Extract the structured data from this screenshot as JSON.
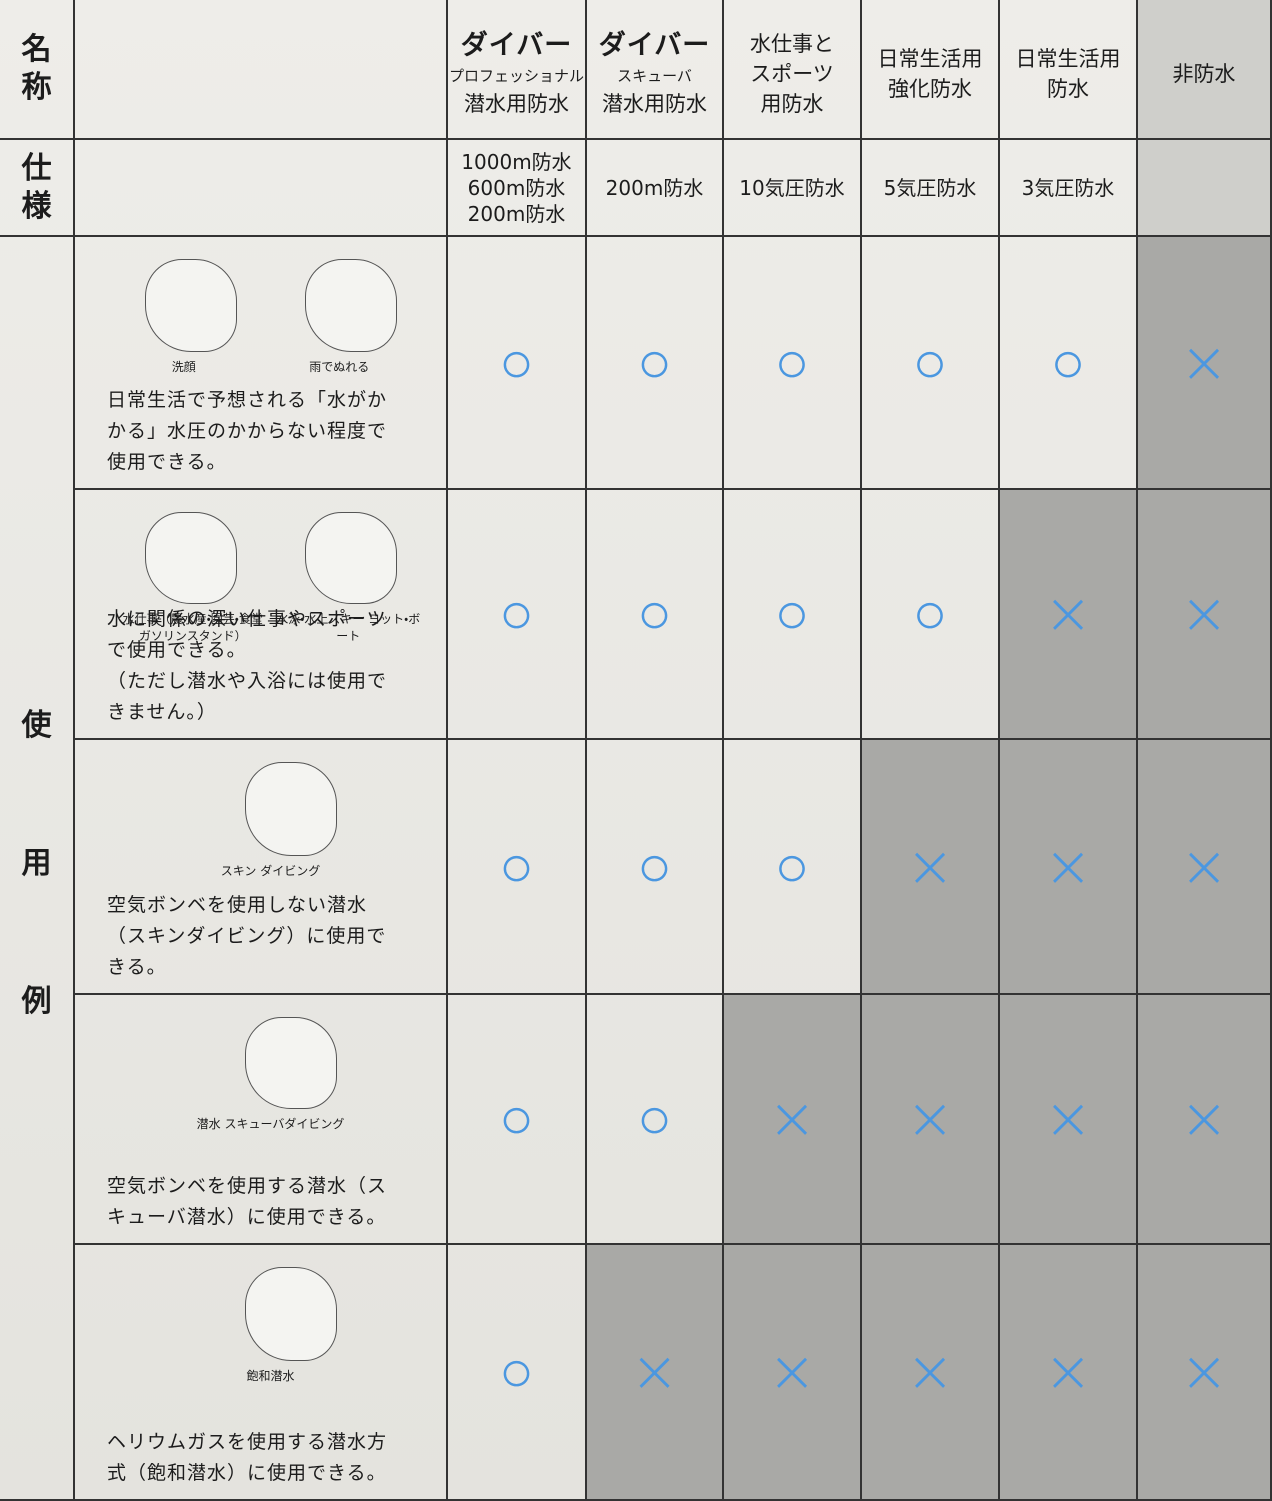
{
  "row_labels": {
    "name": "名称",
    "spec": "仕様",
    "usage": [
      "使",
      "用",
      "例"
    ]
  },
  "columns": [
    {
      "name_lines": [
        "ダイバー",
        "プロフェッショナル",
        "潜水用防水"
      ],
      "spec_lines": [
        "1000m防水",
        "600m防水",
        "200m防水"
      ]
    },
    {
      "name_lines": [
        "ダイバー",
        "スキューバ",
        "潜水用防水"
      ],
      "spec_lines": [
        "200m防水"
      ]
    },
    {
      "name_lines": [
        "水仕事と",
        "スポーツ",
        "用防水"
      ],
      "spec_lines": [
        "10気圧防水"
      ]
    },
    {
      "name_lines": [
        "日常生活用",
        "強化防水"
      ],
      "spec_lines": [
        "5気圧防水"
      ]
    },
    {
      "name_lines": [
        "日常生活用",
        "防水"
      ],
      "spec_lines": [
        "3気圧防水"
      ]
    },
    {
      "name_lines": [
        "非防水"
      ]
    }
  ],
  "usage_rows": [
    {
      "captions": [
        "洗顔",
        "雨でぬれる"
      ],
      "description": [
        "日常生活で予想される「水がか",
        "かる」水圧のかからない程度で",
        "使用できる。"
      ],
      "marks": [
        "○",
        "○",
        "○",
        "○",
        "○",
        "×"
      ]
    },
    {
      "captions": [
        "水仕事（農水産・園芸・食堂 ガソリンスタンド）",
        "水泳・水上スキー ヨット・ボート"
      ],
      "description": [
        "水に関係の深い仕事やスポーツ",
        "で使用できる。",
        "（ただし潜水や入浴には使用で",
        "きません。）"
      ],
      "marks": [
        "○",
        "○",
        "○",
        "○",
        "×",
        "×"
      ]
    },
    {
      "captions": [
        "スキン ダイビング"
      ],
      "description": [
        "空気ボンベを使用しない潜水",
        "（スキンダイビング）に使用で",
        "きる。"
      ],
      "marks": [
        "○",
        "○",
        "○",
        "×",
        "×",
        "×"
      ]
    },
    {
      "captions": [
        "潜水 スキューバダイビング"
      ],
      "description": [
        "空気ボンベを使用する潜水（ス",
        "キューバ潜水）に使用できる。"
      ],
      "marks": [
        "○",
        "○",
        "×",
        "×",
        "×",
        "×"
      ]
    },
    {
      "captions": [
        "飽和潜水"
      ],
      "description": [
        "ヘリウムガスを使用する潜水方",
        "式（飽和潜水）に使用できる。"
      ],
      "marks": [
        "○",
        "×",
        "×",
        "×",
        "×",
        "×"
      ]
    }
  ]
}
